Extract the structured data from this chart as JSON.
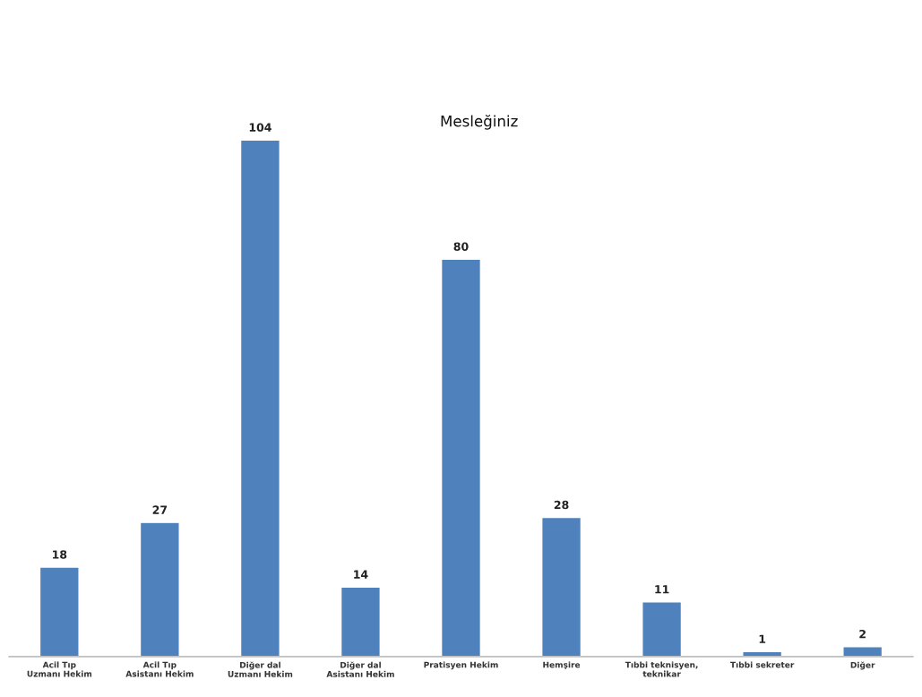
{
  "chart_data": {
    "type": "bar",
    "title": "Mesleğiniz",
    "categories": [
      "Acil Tıp Uzmanı Hekim",
      "Acil Tıp Asistanı Hekim",
      "Diğer dal Uzmanı Hekim",
      "Diğer dal Asistanı Hekim",
      "Pratisyen Hekim",
      "Hemşire",
      "Tıbbi teknisyen, teknikar",
      "Tıbbi sekreter",
      "Diğer"
    ],
    "values": [
      18,
      27,
      104,
      14,
      80,
      28,
      11,
      1,
      2
    ],
    "color": "#4f81bd",
    "data_labels": true,
    "grid": false,
    "legend": false
  }
}
